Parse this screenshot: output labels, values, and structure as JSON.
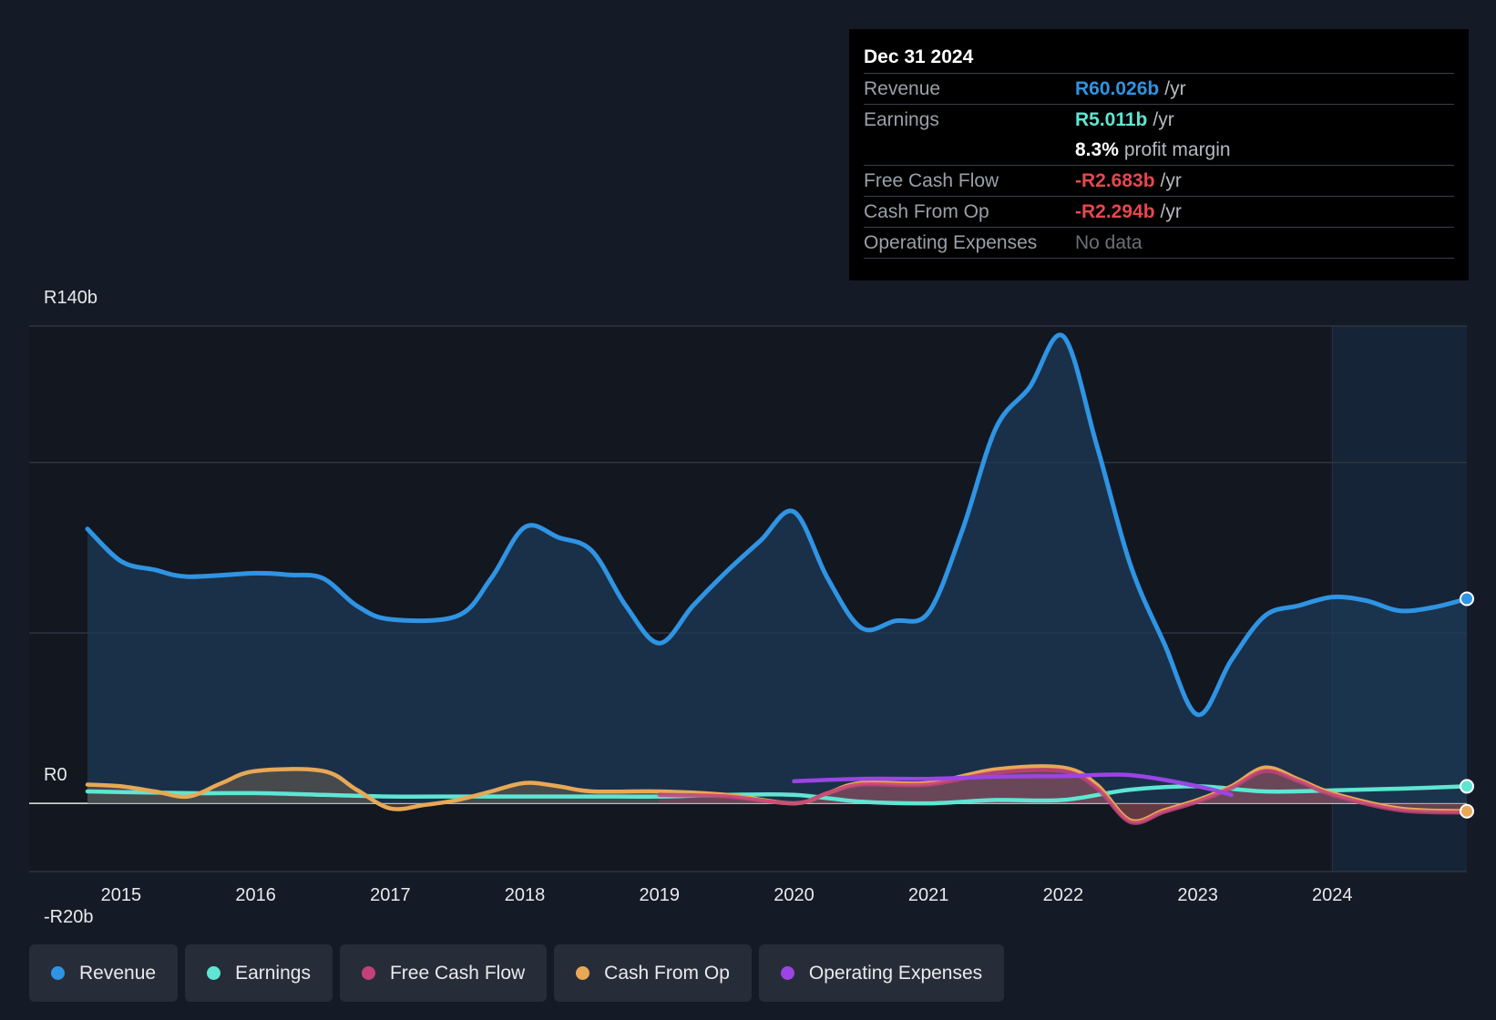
{
  "tooltip": {
    "date": "Dec 31 2024",
    "rows": [
      {
        "label": "Revenue",
        "value": "R60.026b",
        "unit": "/yr",
        "color": "#2f94e3"
      },
      {
        "label": "Earnings",
        "value": "R5.011b",
        "unit": "/yr",
        "color": "#5ee6d3"
      },
      {
        "label": "",
        "value": "8.3%",
        "unit": "profit margin",
        "color": "#ffffff"
      },
      {
        "label": "Free Cash Flow",
        "value": "-R2.683b",
        "unit": "/yr",
        "color": "#e5484d"
      },
      {
        "label": "Cash From Op",
        "value": "-R2.294b",
        "unit": "/yr",
        "color": "#e5484d"
      },
      {
        "label": "Operating Expenses",
        "value": "No data",
        "unit": "",
        "color": "#6b7078"
      }
    ]
  },
  "legend": [
    {
      "label": "Revenue",
      "color": "#2f94e3"
    },
    {
      "label": "Earnings",
      "color": "#5ee6d3"
    },
    {
      "label": "Free Cash Flow",
      "color": "#c2417a"
    },
    {
      "label": "Cash From Op",
      "color": "#e8a855"
    },
    {
      "label": "Operating Expenses",
      "color": "#9b45e4"
    }
  ],
  "chart_data": {
    "type": "line",
    "currency_prefix": "R",
    "y_labels": [
      "R140b",
      "R0",
      "-R20b"
    ],
    "ylim": [
      -20,
      140
    ],
    "xlim": [
      2014.75,
      2025.0
    ],
    "x_ticks": [
      "2015",
      "2016",
      "2017",
      "2018",
      "2019",
      "2020",
      "2021",
      "2022",
      "2023",
      "2024"
    ],
    "x_tick_values": [
      2015,
      2016,
      2017,
      2018,
      2019,
      2020,
      2021,
      2022,
      2023,
      2024
    ],
    "forecast_start": 2024.0,
    "series": [
      {
        "name": "Revenue",
        "color": "#2f94e3",
        "fill": true,
        "points": [
          [
            2014.75,
            80.5
          ],
          [
            2015.0,
            71.0
          ],
          [
            2015.25,
            68.5
          ],
          [
            2015.5,
            66.5
          ],
          [
            2016.0,
            67.5
          ],
          [
            2016.25,
            67.0
          ],
          [
            2016.5,
            66.0
          ],
          [
            2016.75,
            58.0
          ],
          [
            2017.0,
            54.0
          ],
          [
            2017.5,
            55.0
          ],
          [
            2017.75,
            66.0
          ],
          [
            2018.0,
            81.0
          ],
          [
            2018.25,
            78.0
          ],
          [
            2018.5,
            74.0
          ],
          [
            2018.75,
            58.0
          ],
          [
            2019.0,
            47.0
          ],
          [
            2019.25,
            58.0
          ],
          [
            2019.5,
            68.0
          ],
          [
            2019.75,
            77.0
          ],
          [
            2020.0,
            85.5
          ],
          [
            2020.25,
            66.0
          ],
          [
            2020.5,
            51.5
          ],
          [
            2020.75,
            53.5
          ],
          [
            2021.0,
            56.0
          ],
          [
            2021.25,
            80.0
          ],
          [
            2021.5,
            110.0
          ],
          [
            2021.75,
            122.0
          ],
          [
            2022.0,
            137.0
          ],
          [
            2022.25,
            105.0
          ],
          [
            2022.5,
            70.0
          ],
          [
            2022.75,
            47.0
          ],
          [
            2023.0,
            26.0
          ],
          [
            2023.25,
            42.0
          ],
          [
            2023.5,
            55.0
          ],
          [
            2023.75,
            58.0
          ],
          [
            2024.0,
            60.5
          ],
          [
            2024.25,
            59.5
          ],
          [
            2024.5,
            56.5
          ],
          [
            2024.75,
            57.5
          ],
          [
            2025.0,
            60.0
          ]
        ]
      },
      {
        "name": "Earnings",
        "color": "#5ee6d3",
        "fill": false,
        "points": [
          [
            2014.75,
            3.5
          ],
          [
            2015.5,
            3.0
          ],
          [
            2016.0,
            3.0
          ],
          [
            2016.5,
            2.5
          ],
          [
            2017.0,
            2.0
          ],
          [
            2017.5,
            2.0
          ],
          [
            2018.0,
            2.0
          ],
          [
            2018.5,
            2.0
          ],
          [
            2019.0,
            2.0
          ],
          [
            2019.5,
            2.5
          ],
          [
            2020.0,
            2.5
          ],
          [
            2020.5,
            0.5
          ],
          [
            2021.0,
            0.0
          ],
          [
            2021.5,
            1.0
          ],
          [
            2022.0,
            1.0
          ],
          [
            2022.5,
            4.0
          ],
          [
            2023.0,
            5.0
          ],
          [
            2023.5,
            3.5
          ],
          [
            2024.0,
            3.8
          ],
          [
            2024.5,
            4.3
          ],
          [
            2025.0,
            5.0
          ]
        ]
      },
      {
        "name": "Cash From Op",
        "color": "#e8a855",
        "fill": true,
        "points": [
          [
            2014.75,
            5.5
          ],
          [
            2015.0,
            5.0
          ],
          [
            2015.25,
            3.5
          ],
          [
            2015.5,
            2.0
          ],
          [
            2015.75,
            6.0
          ],
          [
            2016.0,
            9.5
          ],
          [
            2016.5,
            9.5
          ],
          [
            2016.75,
            4.0
          ],
          [
            2017.0,
            -1.5
          ],
          [
            2017.25,
            -0.5
          ],
          [
            2017.5,
            1.0
          ],
          [
            2017.75,
            3.5
          ],
          [
            2018.0,
            6.0
          ],
          [
            2018.25,
            5.0
          ],
          [
            2018.5,
            3.5
          ],
          [
            2019.0,
            3.5
          ],
          [
            2019.5,
            2.5
          ],
          [
            2020.0,
            0.0
          ],
          [
            2020.25,
            3.0
          ],
          [
            2020.5,
            6.0
          ],
          [
            2021.0,
            6.0
          ],
          [
            2021.5,
            10.0
          ],
          [
            2022.0,
            10.5
          ],
          [
            2022.25,
            5.5
          ],
          [
            2022.5,
            -5.0
          ],
          [
            2022.75,
            -2.0
          ],
          [
            2023.0,
            1.0
          ],
          [
            2023.25,
            5.0
          ],
          [
            2023.5,
            10.5
          ],
          [
            2023.75,
            7.0
          ],
          [
            2024.0,
            3.0
          ],
          [
            2024.5,
            -1.5
          ],
          [
            2025.0,
            -2.3
          ]
        ]
      },
      {
        "name": "Free Cash Flow",
        "color": "#c2417a",
        "fill": true,
        "points": [
          [
            2019.0,
            2.5
          ],
          [
            2019.5,
            2.0
          ],
          [
            2020.0,
            0.0
          ],
          [
            2020.25,
            3.0
          ],
          [
            2020.5,
            5.5
          ],
          [
            2021.0,
            5.5
          ],
          [
            2021.5,
            9.0
          ],
          [
            2022.0,
            9.5
          ],
          [
            2022.25,
            4.5
          ],
          [
            2022.5,
            -5.5
          ],
          [
            2022.75,
            -2.5
          ],
          [
            2023.0,
            0.5
          ],
          [
            2023.25,
            4.5
          ],
          [
            2023.5,
            9.5
          ],
          [
            2023.75,
            6.5
          ],
          [
            2024.0,
            2.5
          ],
          [
            2024.5,
            -2.0
          ],
          [
            2025.0,
            -2.7
          ]
        ]
      },
      {
        "name": "Operating Expenses",
        "color": "#9b45e4",
        "fill": false,
        "points": [
          [
            2020.0,
            6.5
          ],
          [
            2020.5,
            7.2
          ],
          [
            2021.0,
            7.2
          ],
          [
            2021.5,
            7.8
          ],
          [
            2022.0,
            8.0
          ],
          [
            2022.5,
            8.3
          ],
          [
            2023.0,
            5.0
          ],
          [
            2023.25,
            2.5
          ]
        ]
      }
    ]
  }
}
